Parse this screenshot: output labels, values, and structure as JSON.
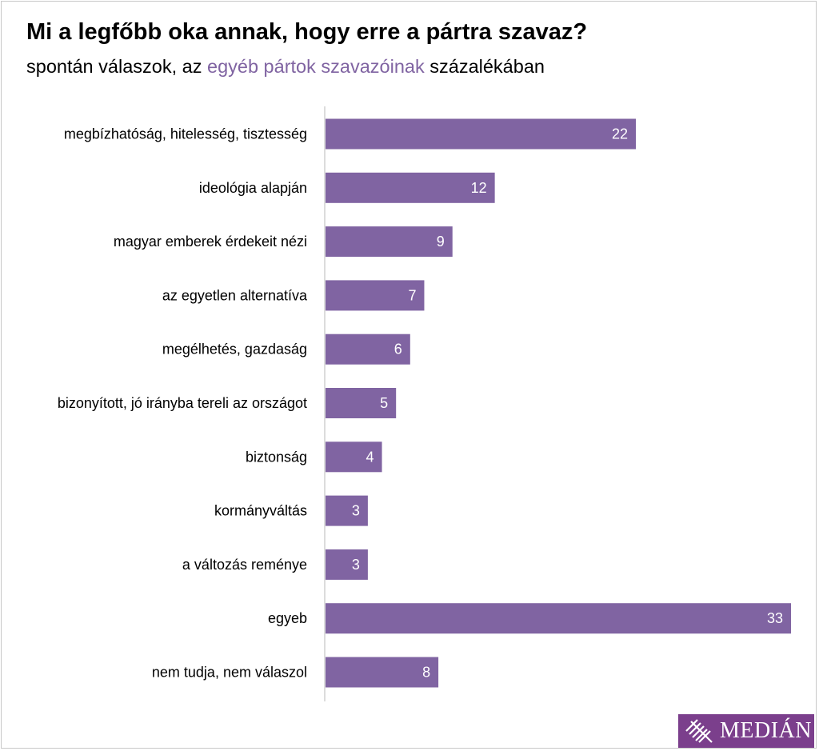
{
  "header": {
    "title": "Mi a legfőbb oka annak, hogy erre a pártra szavaz?",
    "subtitle_before": "spontán válaszok, az ",
    "subtitle_highlight": "egyéb pártok szavazóinak",
    "subtitle_after": " százalékában"
  },
  "logo": {
    "text": "MEDIÁN",
    "icon": "median-stripes-icon",
    "color": "#7b3f8c"
  },
  "colors": {
    "bar": "#8064a2",
    "highlight": "#8064a2"
  },
  "chart_data": {
    "type": "bar",
    "orientation": "horizontal",
    "title": "Mi a legfőbb oka annak, hogy erre a pártra szavaz?",
    "subtitle": "spontán válaszok, az egyéb pártok szavazóinak százalékában",
    "categories": [
      "megbízhatóság, hitelesség, tisztesség",
      "ideológia alapján",
      "magyar emberek érdekeit nézi",
      "az egyetlen alternatíva",
      "megélhetés, gazdaság",
      "bizonyított, jó irányba tereli az országot",
      "biztonság",
      "kormányváltás",
      "a változás reménye",
      "egyeb",
      "nem tudja, nem válaszol"
    ],
    "values": [
      22,
      12,
      9,
      7,
      6,
      5,
      4,
      3,
      3,
      33,
      8
    ],
    "xlim": [
      0,
      33
    ],
    "data_labels": true,
    "grid": false,
    "legend": "none"
  }
}
